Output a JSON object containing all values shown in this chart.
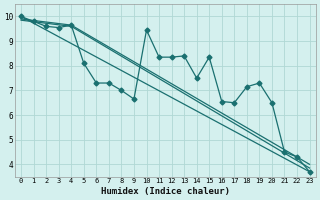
{
  "xlabel": "Humidex (Indice chaleur)",
  "xlim": [
    -0.5,
    23.5
  ],
  "ylim": [
    3.5,
    10.5
  ],
  "yticks": [
    4,
    5,
    6,
    7,
    8,
    9,
    10
  ],
  "xticks": [
    0,
    1,
    2,
    3,
    4,
    5,
    6,
    7,
    8,
    9,
    10,
    11,
    12,
    13,
    14,
    15,
    16,
    17,
    18,
    19,
    20,
    21,
    22,
    23
  ],
  "bg_color": "#d4f0ee",
  "grid_color": "#b0d8d4",
  "line_color": "#1a7070",
  "jagged_x": [
    0,
    1,
    2,
    3,
    4,
    5,
    6,
    7,
    8,
    9,
    10,
    11,
    12,
    13,
    14,
    15,
    16,
    17,
    18,
    19,
    20,
    21,
    22,
    23
  ],
  "jagged_y": [
    10.0,
    9.8,
    9.6,
    9.55,
    9.65,
    8.1,
    7.3,
    7.3,
    7.0,
    6.65,
    9.45,
    8.35,
    8.35,
    8.4,
    7.5,
    8.35,
    6.55,
    6.5,
    7.15,
    7.3,
    6.5,
    4.5,
    4.3,
    3.7
  ],
  "trend1_x": [
    0,
    23
  ],
  "trend1_y": [
    10.0,
    3.7
  ],
  "trend2_x": [
    0,
    4,
    23
  ],
  "trend2_y": [
    9.9,
    9.65,
    4.0
  ],
  "trend3_x": [
    0,
    4,
    23
  ],
  "trend3_y": [
    9.85,
    9.6,
    3.85
  ],
  "markersize": 2.5,
  "linewidth": 0.9
}
